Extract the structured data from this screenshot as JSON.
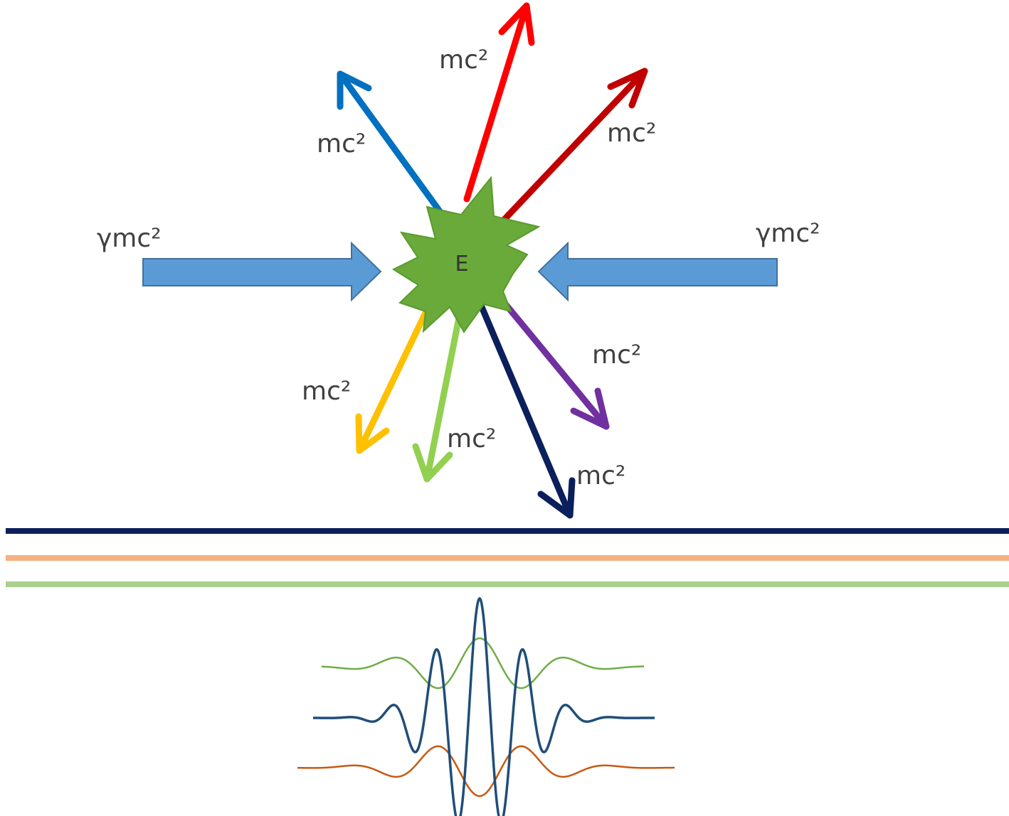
{
  "collision": {
    "center_label": "E",
    "burst_color": "#6aaa3a",
    "incoming": [
      {
        "id": "left",
        "label": "γmc²",
        "color": "#5b9bd5"
      },
      {
        "id": "right",
        "label": "γmc²",
        "color": "#5b9bd5"
      }
    ],
    "outgoing": [
      {
        "id": "blue",
        "label": "mc²",
        "color": "#0070c0"
      },
      {
        "id": "red",
        "label": "mc²",
        "color": "#ff0000"
      },
      {
        "id": "dark-red",
        "label": "mc²",
        "color": "#c00000"
      },
      {
        "id": "purple",
        "label": "mc²",
        "color": "#7030a0"
      },
      {
        "id": "navy",
        "label": "mc²",
        "color": "#0b1f5c"
      },
      {
        "id": "light-green",
        "label": "mc²",
        "color": "#92d050"
      },
      {
        "id": "yellow",
        "label": "mc²",
        "color": "#ffc000"
      }
    ]
  },
  "lines": [
    {
      "id": "navy",
      "color": "#0b1f5c"
    },
    {
      "id": "orange",
      "color": "#f4b183"
    },
    {
      "id": "green",
      "color": "#a9d18e"
    }
  ],
  "wave_packet": {
    "curves": [
      {
        "id": "green",
        "color": "#70ad47"
      },
      {
        "id": "blue",
        "color": "#1f4e79"
      },
      {
        "id": "orange",
        "color": "#c55a11"
      }
    ]
  }
}
